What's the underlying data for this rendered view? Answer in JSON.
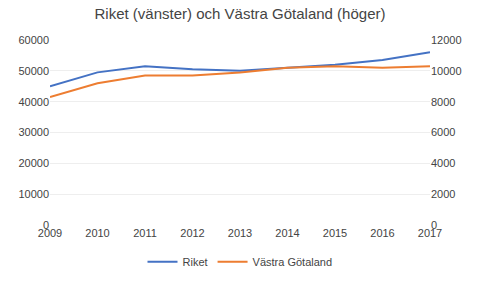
{
  "chart_data": {
    "type": "line",
    "title": "Riket (vänster) och Västra Götaland (höger)",
    "x": [
      2009,
      2010,
      2011,
      2012,
      2013,
      2014,
      2015,
      2016,
      2017
    ],
    "xlim": [
      2009,
      2017
    ],
    "xticks": [
      2009,
      2010,
      2011,
      2012,
      2013,
      2014,
      2015,
      2016,
      2017
    ],
    "series": [
      {
        "name": "Riket",
        "color": "#4472C4",
        "values": [
          45000,
          49500,
          51500,
          50500,
          50000,
          51000,
          52000,
          53500,
          56000
        ]
      },
      {
        "name": "Västra Götaland",
        "color": "#ED7D31",
        "axis": "y2",
        "values": [
          8300,
          9200,
          9700,
          9700,
          9900,
          10200,
          10300,
          10200,
          10300
        ]
      }
    ],
    "ylim": [
      0,
      60000
    ],
    "yticks": [
      0,
      10000,
      20000,
      30000,
      40000,
      50000,
      60000
    ],
    "y2lim": [
      0,
      12000
    ],
    "y2ticks": [
      0,
      2000,
      4000,
      6000,
      8000,
      10000,
      12000
    ],
    "grid": true,
    "legend": "bottom"
  }
}
